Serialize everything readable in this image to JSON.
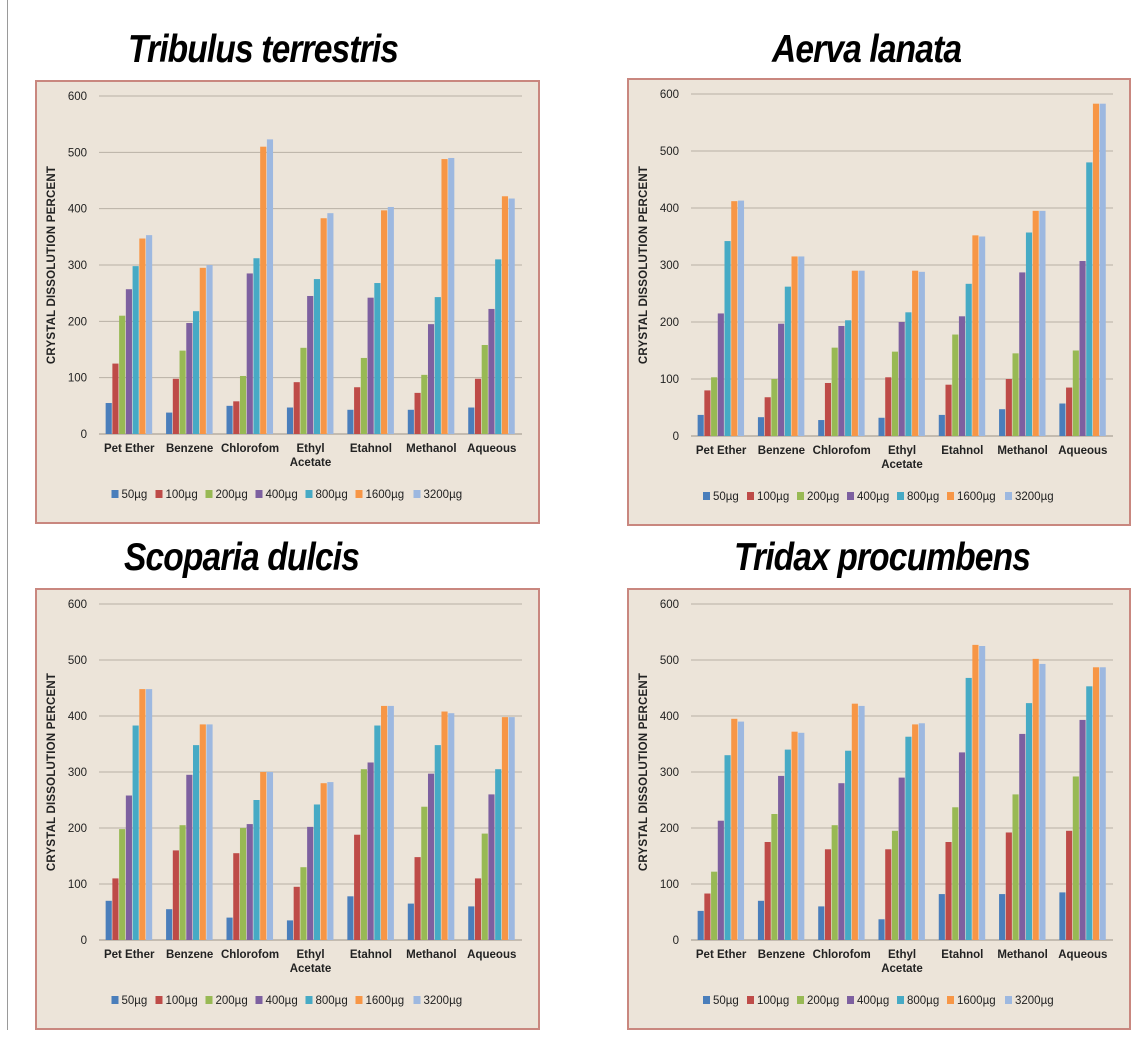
{
  "series_colors": [
    "#4a7ebb",
    "#be4b48",
    "#98b954",
    "#7d60a0",
    "#46aac5",
    "#f79646",
    "#9db8e0"
  ],
  "chart_data": [
    {
      "type": "bar",
      "title": "Tribulus terrestris",
      "ylabel": "CRYSTAL DISSOLUTION PERCENT",
      "ylim": [
        0,
        600
      ],
      "yticks": [
        "0",
        "100",
        "200",
        "300",
        "400",
        "500",
        "600"
      ],
      "grid": true,
      "legend": "bottom",
      "categories": [
        "Pet Ether",
        "Benzene",
        "Chlorofom",
        "Ethyl Acetate",
        "Etahnol",
        "Methanol",
        "Aqueous"
      ],
      "series": [
        {
          "name": "50µg",
          "values": [
            55,
            38,
            50,
            47,
            43,
            43,
            47
          ]
        },
        {
          "name": "100µg",
          "values": [
            125,
            98,
            58,
            92,
            83,
            73,
            98
          ]
        },
        {
          "name": "200µg",
          "values": [
            210,
            148,
            103,
            153,
            135,
            105,
            158
          ]
        },
        {
          "name": "400µg",
          "values": [
            257,
            197,
            285,
            245,
            242,
            195,
            222
          ]
        },
        {
          "name": "800µg",
          "values": [
            298,
            218,
            312,
            275,
            268,
            243,
            310
          ]
        },
        {
          "name": "1600µg",
          "values": [
            347,
            295,
            510,
            383,
            397,
            488,
            422
          ]
        },
        {
          "name": "3200µg",
          "values": [
            353,
            300,
            523,
            392,
            403,
            490,
            418
          ]
        }
      ]
    },
    {
      "type": "bar",
      "title": "Aerva lanata",
      "ylabel": "CRYSTAL DISSOLUTION PERCENT",
      "ylim": [
        0,
        600
      ],
      "yticks": [
        "0",
        "100",
        "200",
        "300",
        "400",
        "500",
        "600"
      ],
      "grid": true,
      "legend": "bottom",
      "categories": [
        "Pet Ether",
        "Benzene",
        "Chlorofom",
        "Ethyl Acetate",
        "Etahnol",
        "Methanol",
        "Aqueous"
      ],
      "series": [
        {
          "name": "50µg",
          "values": [
            37,
            33,
            28,
            32,
            37,
            47,
            57
          ]
        },
        {
          "name": "100µg",
          "values": [
            80,
            68,
            93,
            103,
            90,
            100,
            85
          ]
        },
        {
          "name": "200µg",
          "values": [
            103,
            100,
            155,
            148,
            178,
            145,
            150
          ]
        },
        {
          "name": "400µg",
          "values": [
            215,
            197,
            193,
            200,
            210,
            287,
            307
          ]
        },
        {
          "name": "800µg",
          "values": [
            342,
            262,
            203,
            217,
            267,
            357,
            480
          ]
        },
        {
          "name": "1600µg",
          "values": [
            412,
            315,
            290,
            290,
            352,
            395,
            583
          ]
        },
        {
          "name": "3200µg",
          "values": [
            413,
            315,
            290,
            288,
            350,
            395,
            583
          ]
        }
      ]
    },
    {
      "type": "bar",
      "title": "Scoparia dulcis",
      "ylabel": "CRYSTAL DISSOLUTION PERCENT",
      "ylim": [
        0,
        600
      ],
      "yticks": [
        "0",
        "100",
        "200",
        "300",
        "400",
        "500",
        "600"
      ],
      "grid": true,
      "legend": "bottom",
      "categories": [
        "Pet Ether",
        "Benzene",
        "Chlorofom",
        "Ethyl Acetate",
        "Etahnol",
        "Methanol",
        "Aqueous"
      ],
      "series": [
        {
          "name": "50µg",
          "values": [
            70,
            55,
            40,
            35,
            78,
            65,
            60
          ]
        },
        {
          "name": "100µg",
          "values": [
            110,
            160,
            155,
            95,
            188,
            148,
            110
          ]
        },
        {
          "name": "200µg",
          "values": [
            198,
            205,
            200,
            130,
            305,
            238,
            190
          ]
        },
        {
          "name": "400µg",
          "values": [
            258,
            295,
            207,
            202,
            317,
            297,
            260
          ]
        },
        {
          "name": "800µg",
          "values": [
            383,
            348,
            250,
            242,
            383,
            348,
            305
          ]
        },
        {
          "name": "1600µg",
          "values": [
            448,
            385,
            300,
            280,
            418,
            408,
            398
          ]
        },
        {
          "name": "3200µg",
          "values": [
            448,
            385,
            300,
            282,
            418,
            405,
            398
          ]
        }
      ]
    },
    {
      "type": "bar",
      "title": "Tridax procumbens",
      "ylabel": "CRYSTAL DISSOLUTION PERCENT",
      "ylim": [
        0,
        600
      ],
      "yticks": [
        "0",
        "100",
        "200",
        "300",
        "400",
        "500",
        "600"
      ],
      "grid": true,
      "legend": "bottom",
      "categories": [
        "Pet Ether",
        "Benzene",
        "Chlorofom",
        "Ethyl Acetate",
        "Etahnol",
        "Methanol",
        "Aqueous"
      ],
      "series": [
        {
          "name": "50µg",
          "values": [
            52,
            70,
            60,
            37,
            82,
            82,
            85
          ]
        },
        {
          "name": "100µg",
          "values": [
            83,
            175,
            162,
            162,
            175,
            192,
            195
          ]
        },
        {
          "name": "200µg",
          "values": [
            122,
            225,
            205,
            195,
            237,
            260,
            292
          ]
        },
        {
          "name": "400µg",
          "values": [
            213,
            293,
            280,
            290,
            335,
            368,
            393
          ]
        },
        {
          "name": "800µg",
          "values": [
            330,
            340,
            338,
            363,
            468,
            423,
            453
          ]
        },
        {
          "name": "1600µg",
          "values": [
            395,
            372,
            422,
            385,
            527,
            502,
            487
          ]
        },
        {
          "name": "3200µg",
          "values": [
            390,
            370,
            418,
            387,
            525,
            493,
            487
          ]
        }
      ]
    }
  ]
}
